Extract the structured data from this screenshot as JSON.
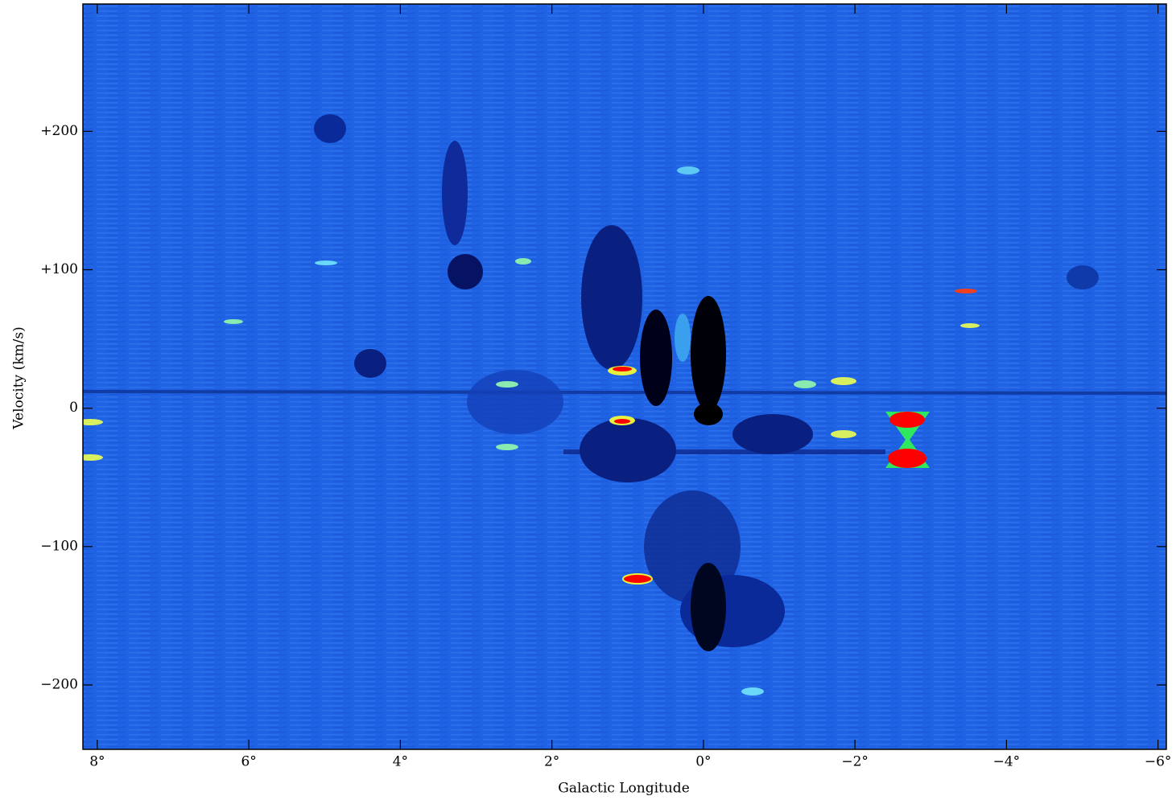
{
  "chart_data": {
    "type": "image",
    "x_label": "Galactic Longitude",
    "y_label": "Velocity (km/s)",
    "xlim": [
      8.19,
      -6.11
    ],
    "ylim": [
      -246.5,
      292
    ],
    "xticks": [
      {
        "value": 8,
        "label": "8°"
      },
      {
        "value": 6,
        "label": "6°"
      },
      {
        "value": 4,
        "label": "4°"
      },
      {
        "value": 2,
        "label": "2°"
      },
      {
        "value": 0,
        "label": "0°"
      },
      {
        "value": -2,
        "label": "−2°"
      },
      {
        "value": -4,
        "label": "−4°"
      },
      {
        "value": -6,
        "label": "−6°"
      }
    ],
    "yticks": [
      {
        "value": 200,
        "label": "+200"
      },
      {
        "value": 100,
        "label": "+100"
      },
      0,
      {
        "value": -100,
        "label": "−100"
      },
      {
        "value": -200,
        "label": "−200"
      }
    ],
    "color": "#1f62e4"
  }
}
